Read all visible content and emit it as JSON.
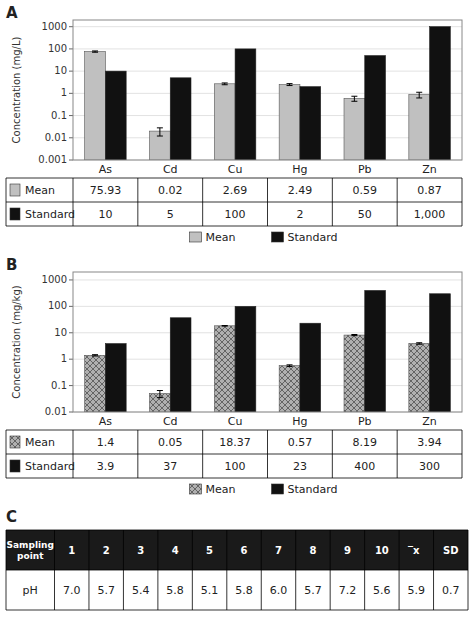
{
  "chart_data": [
    {
      "type": "bar",
      "title": "A",
      "ylabel": "Concentration (mg/L)",
      "categories": [
        "As",
        "Cd",
        "Cu",
        "Hg",
        "Pb",
        "Zn"
      ],
      "series": [
        {
          "name": "Mean",
          "color": "#c0c0c0",
          "values": [
            75.93,
            0.02,
            2.69,
            2.49,
            0.59,
            0.87
          ],
          "errors": [
            5.0,
            0.008,
            0.25,
            0.25,
            0.15,
            0.25
          ],
          "value_labels": [
            "75.93",
            "0.02",
            "2.69",
            "2.49",
            "0.59",
            "0.87"
          ]
        },
        {
          "name": "Standard",
          "color": "#111111",
          "values": [
            10,
            5,
            100,
            2,
            50,
            1000
          ],
          "value_labels": [
            "10",
            "5",
            "100",
            "2",
            "50",
            "1,000"
          ]
        }
      ],
      "log": "y",
      "ylim": [
        0.001,
        2000
      ],
      "yticks": [
        0.001,
        0.01,
        0.1,
        1,
        10,
        100,
        1000
      ],
      "grid": true,
      "legend": "bottom"
    },
    {
      "type": "bar",
      "title": "B",
      "ylabel": "Concentration (mg/kg)",
      "categories": [
        "As",
        "Cd",
        "Cu",
        "Hg",
        "Pb",
        "Zn"
      ],
      "series": [
        {
          "name": "Mean",
          "color": "#b0b0b0",
          "values": [
            1.4,
            0.05,
            18.37,
            0.57,
            8.19,
            3.94
          ],
          "errors": [
            0.08,
            0.015,
            0.4,
            0.04,
            0.4,
            0.25
          ],
          "value_labels": [
            "1.4",
            "0.05",
            "18.37",
            "0.57",
            "8.19",
            "3.94"
          ]
        },
        {
          "name": "Standard",
          "color": "#111111",
          "values": [
            3.9,
            37,
            100,
            23,
            400,
            300
          ],
          "value_labels": [
            "3.9",
            "37",
            "100",
            "23",
            "400",
            "300"
          ]
        }
      ],
      "log": "y",
      "ylim": [
        0.01,
        2000
      ],
      "yticks": [
        0.01,
        0.1,
        1,
        10,
        100,
        1000
      ],
      "grid": true,
      "legend": "bottom"
    },
    {
      "type": "table",
      "title": "C",
      "xlabel": "Sampling\npoint",
      "categories": [
        "1",
        "2",
        "3",
        "4",
        "5",
        "6",
        "7",
        "8",
        "9",
        "10",
        "̅x",
        "SD"
      ],
      "series": [
        {
          "name": "pH",
          "values": [
            7.0,
            5.7,
            5.4,
            5.8,
            5.1,
            5.8,
            6.0,
            5.7,
            7.2,
            5.6,
            5.9,
            0.7
          ],
          "value_labels": [
            "7.0",
            "5.7",
            "5.4",
            "5.8",
            "5.1",
            "5.8",
            "6.0",
            "5.7",
            "7.2",
            "5.6",
            "5.9",
            "0.7"
          ]
        }
      ]
    }
  ]
}
